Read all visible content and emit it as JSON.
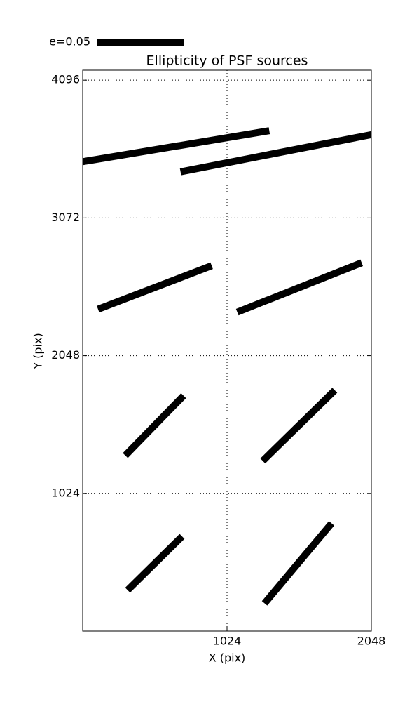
{
  "chart_data": {
    "type": "whisker",
    "title": "Ellipticity of PSF sources",
    "x_label": "X (pix)",
    "y_label": "Y (pix)",
    "xlim": [
      0,
      2048
    ],
    "ylim": [
      0,
      4170
    ],
    "xticks": [
      1024,
      2048
    ],
    "yticks": [
      1024,
      2048,
      3072,
      4096
    ],
    "grid": true,
    "color": "#000000",
    "key": {
      "label": "e=0.05",
      "value": 0.05
    },
    "whiskers": {
      "x": [
        661,
        1372,
        512,
        1538,
        509,
        1533,
        512,
        1528
      ],
      "y": [
        3605,
        3553,
        2555,
        2555,
        1528,
        1528,
        504,
        504
      ],
      "e": [
        0.109,
        0.112,
        0.07,
        0.077,
        0.048,
        0.058,
        0.044,
        0.06
      ],
      "angle": [
        9.4,
        11,
        20.9,
        21.6,
        45.7,
        44.4,
        44.6,
        50
      ]
    }
  }
}
